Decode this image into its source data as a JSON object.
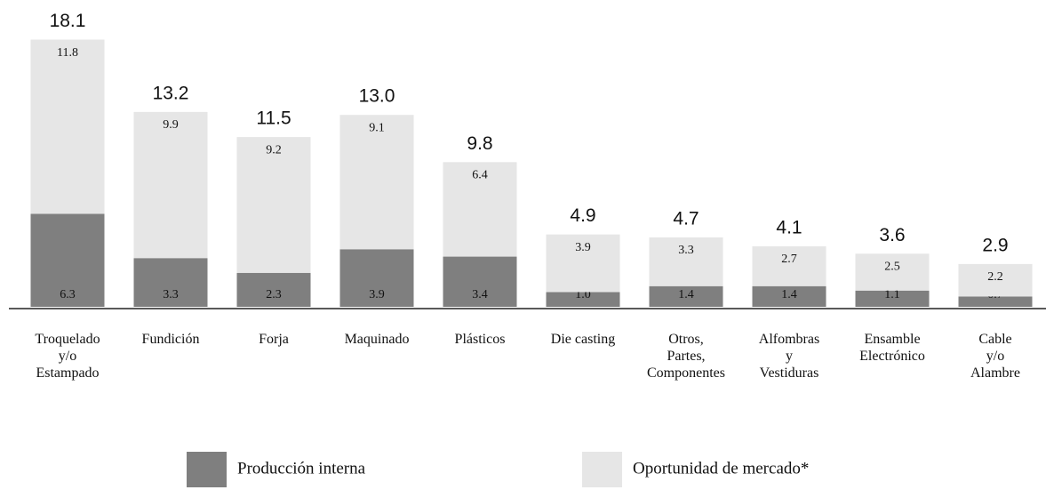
{
  "chart_data": {
    "type": "stacked_bar",
    "categories": [
      [
        "Troquelado",
        "y/o",
        "Estampado"
      ],
      [
        "Fundición"
      ],
      [
        "Forja"
      ],
      [
        "Maquinado"
      ],
      [
        "Plásticos"
      ],
      [
        "Die casting"
      ],
      [
        "Otros,",
        "Partes,",
        "Componentes"
      ],
      [
        "Alfombras",
        "y",
        "Vestiduras"
      ],
      [
        "Ensamble",
        "Electrónico"
      ],
      [
        "Cable",
        "y/o",
        "Alambre"
      ]
    ],
    "series": [
      {
        "name": "Producción interna",
        "color": "#7f7f7f",
        "values": [
          6.3,
          3.3,
          2.3,
          3.9,
          3.4,
          1.0,
          1.4,
          1.4,
          1.1,
          0.7
        ],
        "value_labels": [
          "6.3",
          "3.3",
          "2.3",
          "3.9",
          "3.4",
          "1.0",
          "1.4",
          "1.4",
          "1.1",
          "0.7"
        ]
      },
      {
        "name": "Oportunidad de mercado*",
        "color": "#e6e6e6",
        "values": [
          11.8,
          9.9,
          9.2,
          9.1,
          6.4,
          3.9,
          3.3,
          2.7,
          2.5,
          2.2
        ],
        "value_labels": [
          "11.8",
          "9.9",
          "9.2",
          "9.1",
          "6.4",
          "3.9",
          "3.3",
          "2.7",
          "2.5",
          "2.2"
        ]
      }
    ],
    "totals": [
      18.1,
      13.2,
      11.5,
      13.0,
      9.8,
      4.9,
      4.7,
      4.1,
      3.6,
      2.9
    ],
    "totals_labels": [
      "18.1",
      "13.2",
      "11.5",
      "13.0",
      "9.8",
      "4.9",
      "4.7",
      "4.1",
      "3.6",
      "2.9"
    ],
    "ylim": [
      0,
      20
    ]
  }
}
